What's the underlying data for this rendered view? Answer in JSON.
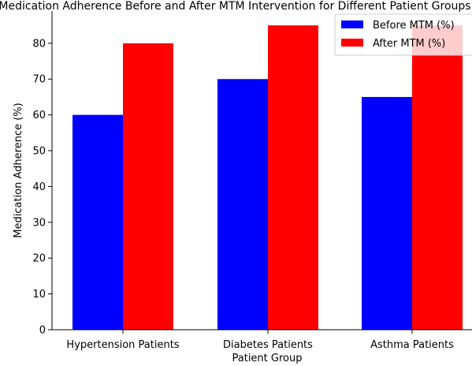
{
  "chart_data": {
    "type": "bar",
    "title": "Medication Adherence Before and After MTM Intervention for Different Patient Groups",
    "xlabel": "Patient Group",
    "ylabel": "Medication Adherence (%)",
    "categories": [
      "Hypertension Patients",
      "Diabetes Patients",
      "Asthma Patients"
    ],
    "series": [
      {
        "name": "Before MTM (%)",
        "color": "#0000ff",
        "values": [
          60,
          70,
          65
        ]
      },
      {
        "name": "After MTM (%)",
        "color": "#ff0000",
        "values": [
          80,
          85,
          85
        ]
      }
    ],
    "ylim": [
      0,
      89
    ],
    "yticks": [
      0,
      10,
      20,
      30,
      40,
      50,
      60,
      70,
      80
    ],
    "grid": false,
    "legend_position": "top-right"
  }
}
